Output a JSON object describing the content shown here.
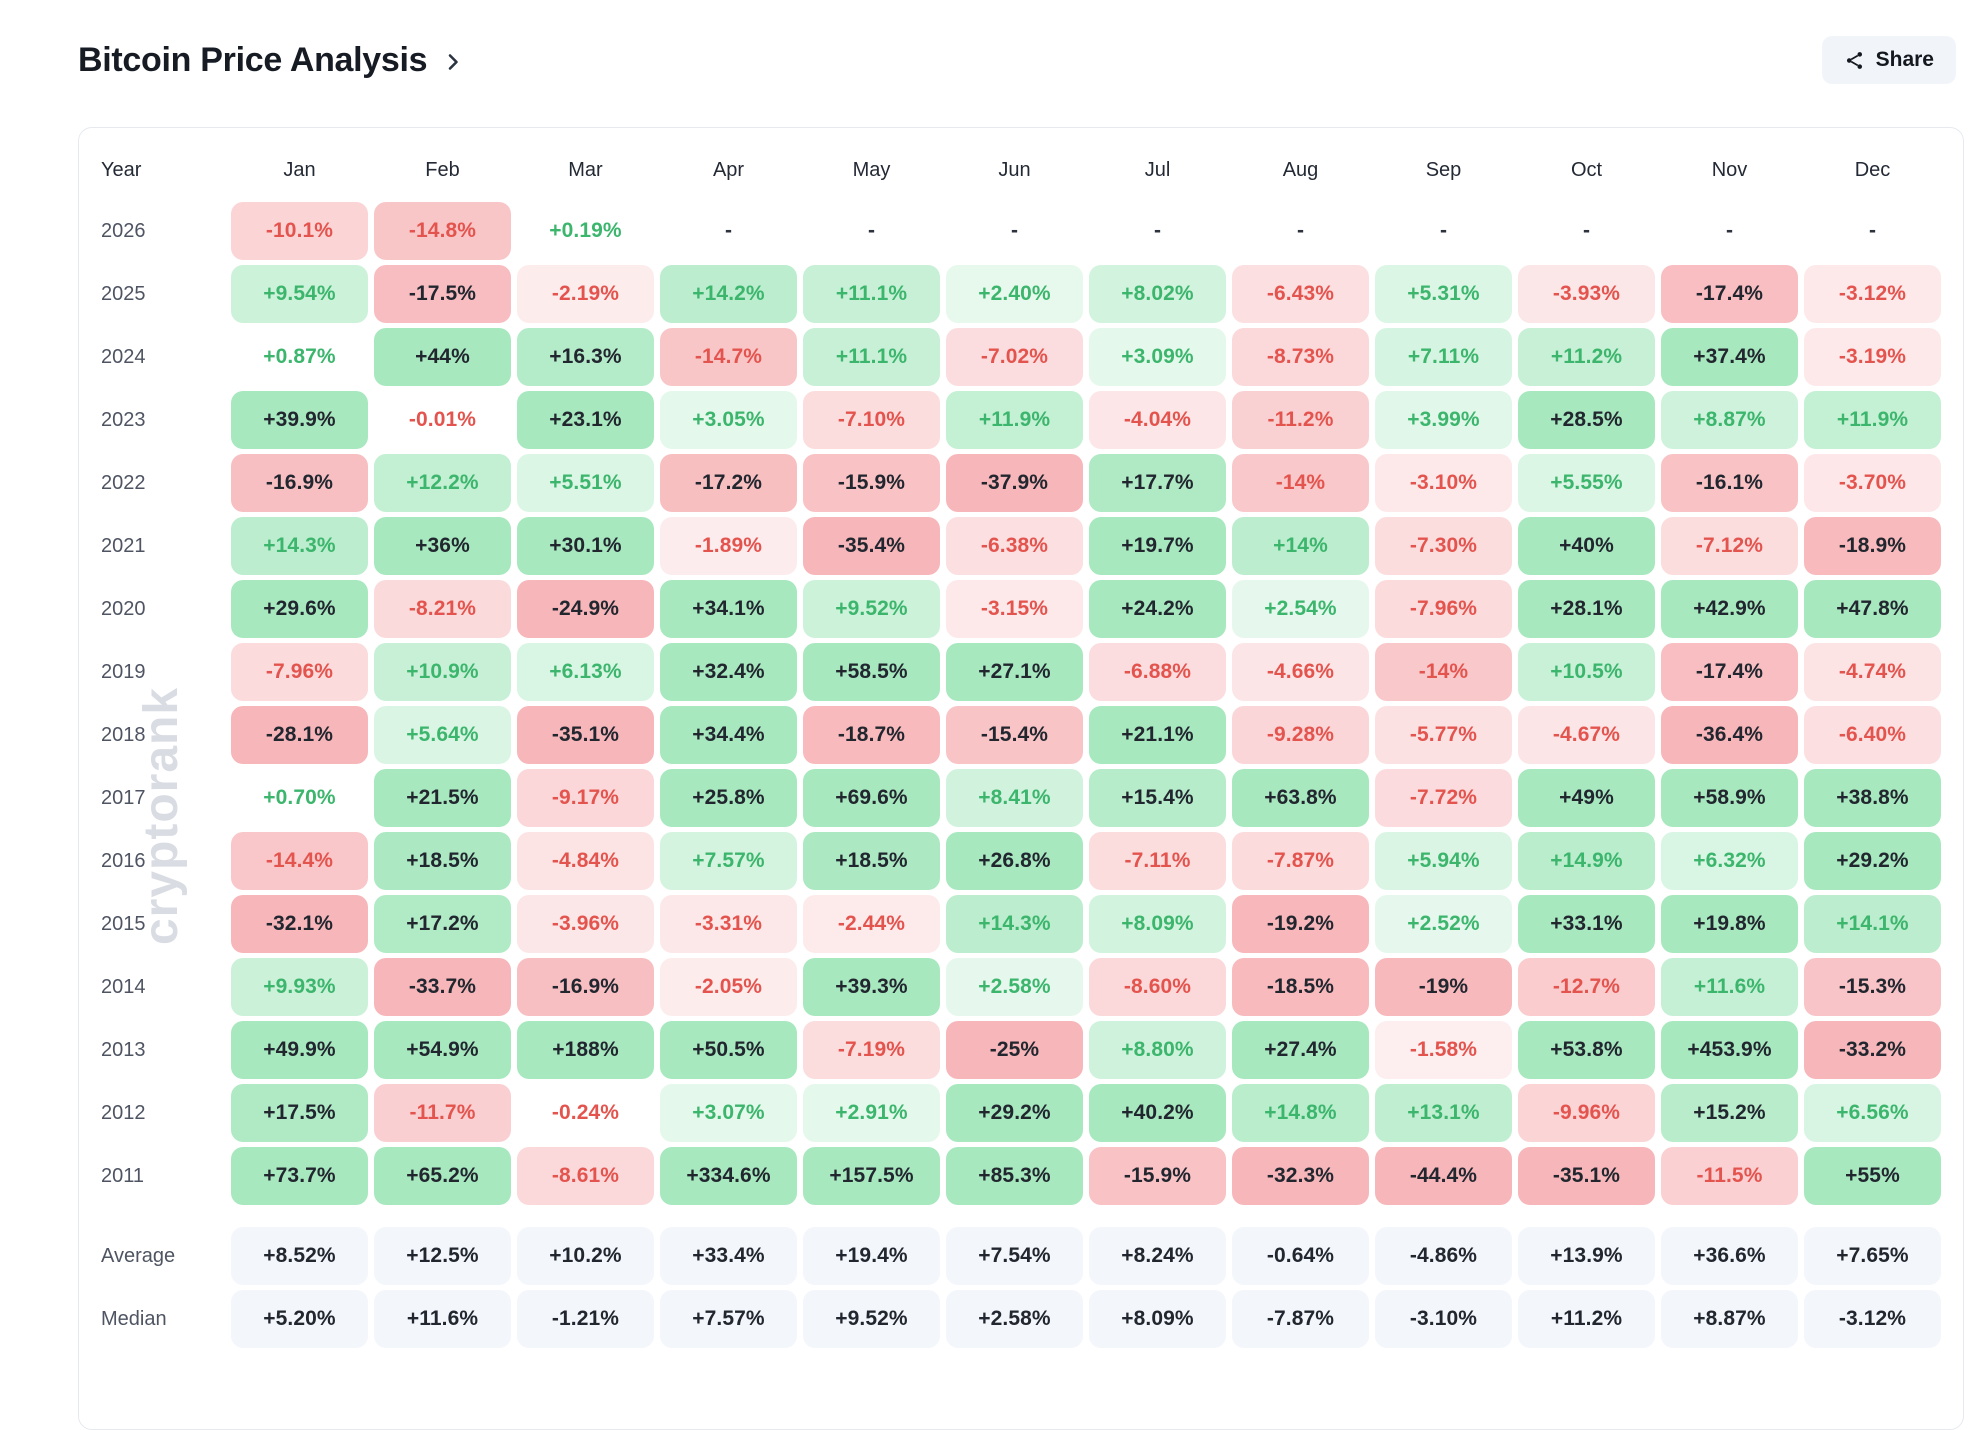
{
  "page": {
    "title": "Bitcoin Price Analysis",
    "share_label": "Share"
  },
  "watermark": "cryptorank",
  "icons": {
    "chevron": "chevron-right-icon",
    "share": "share-icon"
  },
  "colors": {
    "positive_base": "#22c55e",
    "negative_base": "#ec4950",
    "text_dark": "#21262f",
    "text_positive": "#3cb56d",
    "text_negative": "#e4544e",
    "dash_text": "#2c333f",
    "summary_bg": "#f3f6fb",
    "card_border": "#e6e9ee",
    "share_bg": "#f1f5f9"
  },
  "chart_data": {
    "type": "heatmap",
    "title": "Bitcoin Price Analysis",
    "description": "Monthly BTC price change (%) by year; green = positive, red = negative, shade scales with magnitude",
    "year_header": "Year",
    "columns": [
      "Jan",
      "Feb",
      "Mar",
      "Apr",
      "May",
      "Jun",
      "Jul",
      "Aug",
      "Sep",
      "Oct",
      "Nov",
      "Dec"
    ],
    "rows": [
      {
        "year": "2026",
        "values": [
          "-10.1%",
          "-14.8%",
          "+0.19%",
          "-",
          "-",
          "-",
          "-",
          "-",
          "-",
          "-",
          "-",
          "-"
        ]
      },
      {
        "year": "2025",
        "values": [
          "+9.54%",
          "-17.5%",
          "-2.19%",
          "+14.2%",
          "+11.1%",
          "+2.40%",
          "+8.02%",
          "-6.43%",
          "+5.31%",
          "-3.93%",
          "-17.4%",
          "-3.12%"
        ]
      },
      {
        "year": "2024",
        "values": [
          "+0.87%",
          "+44%",
          "+16.3%",
          "-14.7%",
          "+11.1%",
          "-7.02%",
          "+3.09%",
          "-8.73%",
          "+7.11%",
          "+11.2%",
          "+37.4%",
          "-3.19%"
        ]
      },
      {
        "year": "2023",
        "values": [
          "+39.9%",
          "-0.01%",
          "+23.1%",
          "+3.05%",
          "-7.10%",
          "+11.9%",
          "-4.04%",
          "-11.2%",
          "+3.99%",
          "+28.5%",
          "+8.87%",
          "+11.9%"
        ]
      },
      {
        "year": "2022",
        "values": [
          "-16.9%",
          "+12.2%",
          "+5.51%",
          "-17.2%",
          "-15.9%",
          "-37.9%",
          "+17.7%",
          "-14%",
          "-3.10%",
          "+5.55%",
          "-16.1%",
          "-3.70%"
        ]
      },
      {
        "year": "2021",
        "values": [
          "+14.3%",
          "+36%",
          "+30.1%",
          "-1.89%",
          "-35.4%",
          "-6.38%",
          "+19.7%",
          "+14%",
          "-7.30%",
          "+40%",
          "-7.12%",
          "-18.9%"
        ]
      },
      {
        "year": "2020",
        "values": [
          "+29.6%",
          "-8.21%",
          "-24.9%",
          "+34.1%",
          "+9.52%",
          "-3.15%",
          "+24.2%",
          "+2.54%",
          "-7.96%",
          "+28.1%",
          "+42.9%",
          "+47.8%"
        ]
      },
      {
        "year": "2019",
        "values": [
          "-7.96%",
          "+10.9%",
          "+6.13%",
          "+32.4%",
          "+58.5%",
          "+27.1%",
          "-6.88%",
          "-4.66%",
          "-14%",
          "+10.5%",
          "-17.4%",
          "-4.74%"
        ]
      },
      {
        "year": "2018",
        "values": [
          "-28.1%",
          "+5.64%",
          "-35.1%",
          "+34.4%",
          "-18.7%",
          "-15.4%",
          "+21.1%",
          "-9.28%",
          "-5.77%",
          "-4.67%",
          "-36.4%",
          "-6.40%"
        ]
      },
      {
        "year": "2017",
        "values": [
          "+0.70%",
          "+21.5%",
          "-9.17%",
          "+25.8%",
          "+69.6%",
          "+8.41%",
          "+15.4%",
          "+63.8%",
          "-7.72%",
          "+49%",
          "+58.9%",
          "+38.8%"
        ]
      },
      {
        "year": "2016",
        "values": [
          "-14.4%",
          "+18.5%",
          "-4.84%",
          "+7.57%",
          "+18.5%",
          "+26.8%",
          "-7.11%",
          "-7.87%",
          "+5.94%",
          "+14.9%",
          "+6.32%",
          "+29.2%"
        ]
      },
      {
        "year": "2015",
        "values": [
          "-32.1%",
          "+17.2%",
          "-3.96%",
          "-3.31%",
          "-2.44%",
          "+14.3%",
          "+8.09%",
          "-19.2%",
          "+2.52%",
          "+33.1%",
          "+19.8%",
          "+14.1%"
        ]
      },
      {
        "year": "2014",
        "values": [
          "+9.93%",
          "-33.7%",
          "-16.9%",
          "-2.05%",
          "+39.3%",
          "+2.58%",
          "-8.60%",
          "-18.5%",
          "-19%",
          "-12.7%",
          "+11.6%",
          "-15.3%"
        ]
      },
      {
        "year": "2013",
        "values": [
          "+49.9%",
          "+54.9%",
          "+188%",
          "+50.5%",
          "-7.19%",
          "-25%",
          "+8.80%",
          "+27.4%",
          "-1.58%",
          "+53.8%",
          "+453.9%",
          "-33.2%"
        ]
      },
      {
        "year": "2012",
        "values": [
          "+17.5%",
          "-11.7%",
          "-0.24%",
          "+3.07%",
          "+2.91%",
          "+29.2%",
          "+40.2%",
          "+14.8%",
          "+13.1%",
          "-9.96%",
          "+15.2%",
          "+6.56%"
        ]
      },
      {
        "year": "2011",
        "values": [
          "+73.7%",
          "+65.2%",
          "-8.61%",
          "+334.6%",
          "+157.5%",
          "+85.3%",
          "-15.9%",
          "-32.3%",
          "-44.4%",
          "-35.1%",
          "-11.5%",
          "+55%"
        ]
      }
    ],
    "summary_rows": [
      {
        "label": "Average",
        "values": [
          "+8.52%",
          "+12.5%",
          "+10.2%",
          "+33.4%",
          "+19.4%",
          "+7.54%",
          "+8.24%",
          "-0.64%",
          "-4.86%",
          "+13.9%",
          "+36.6%",
          "+7.65%"
        ]
      },
      {
        "label": "Median",
        "values": [
          "+5.20%",
          "+11.6%",
          "-1.21%",
          "+7.57%",
          "+9.52%",
          "+2.58%",
          "+8.09%",
          "-7.87%",
          "-3.10%",
          "+11.2%",
          "+8.87%",
          "-3.12%"
        ]
      }
    ]
  }
}
